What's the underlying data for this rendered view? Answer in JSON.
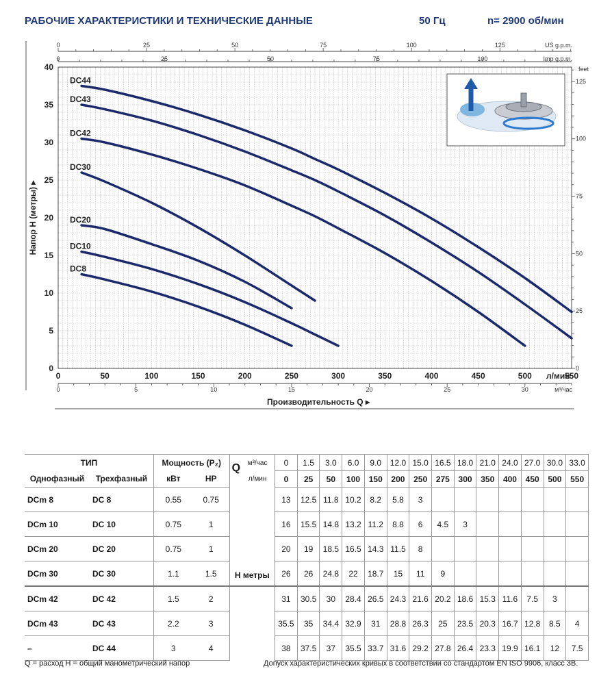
{
  "header": {
    "title": "РАБОЧИЕ ХАРАКТЕРИСТИКИ И ТЕХНИЧЕСКИЕ  ДАННЫЕ",
    "frequency": "50 Гц",
    "rpm": "n= 2900 об/мин"
  },
  "chart_data": {
    "type": "line",
    "title": "",
    "xlabel": "Производительность Q",
    "ylabel": "Напор H  (метры)",
    "x_unit": "л/мин",
    "xlim": [
      0,
      550
    ],
    "ylim": [
      0,
      40
    ],
    "grid": true,
    "x_ticks": [
      0,
      50,
      100,
      150,
      200,
      250,
      300,
      350,
      400,
      450,
      500,
      550
    ],
    "y_ticks": [
      0,
      5,
      10,
      15,
      20,
      25,
      30,
      35,
      40
    ],
    "top_axis_us": {
      "label": "US g.p.m.",
      "ticks": [
        0,
        25,
        50,
        75,
        100,
        125
      ]
    },
    "top_axis_imp": {
      "label": "Imp g.p.m.",
      "ticks": [
        0,
        25,
        50,
        75,
        100
      ]
    },
    "bottom_axis_m3": {
      "label": "м³/час",
      "ticks": [
        0,
        5,
        10,
        15,
        20,
        25,
        30
      ]
    },
    "right_axis_feet": {
      "label": "feet",
      "ticks": [
        0,
        25,
        50,
        75,
        100,
        125
      ]
    },
    "series": [
      {
        "name": "DC44",
        "x": [
          25,
          50,
          100,
          150,
          200,
          250,
          275,
          300,
          350,
          400,
          450,
          500,
          550
        ],
        "y": [
          37.5,
          37,
          35.5,
          33.7,
          31.6,
          29.2,
          27.8,
          26.4,
          23.3,
          19.9,
          16.1,
          12,
          7.5
        ]
      },
      {
        "name": "DC43",
        "x": [
          25,
          50,
          100,
          150,
          200,
          250,
          275,
          300,
          350,
          400,
          450,
          500,
          550
        ],
        "y": [
          35,
          34.4,
          32.9,
          31,
          28.8,
          26.3,
          25,
          23.5,
          20.3,
          16.7,
          12.8,
          8.5,
          4
        ]
      },
      {
        "name": "DC42",
        "x": [
          25,
          50,
          100,
          150,
          200,
          250,
          275,
          300,
          350,
          400,
          450,
          500
        ],
        "y": [
          30.5,
          30,
          28.4,
          26.5,
          24.3,
          21.6,
          20.2,
          18.6,
          15.3,
          11.6,
          7.5,
          3
        ]
      },
      {
        "name": "DC30",
        "x": [
          25,
          50,
          100,
          150,
          200,
          250,
          275
        ],
        "y": [
          26,
          24.8,
          22,
          18.7,
          15,
          11,
          9
        ]
      },
      {
        "name": "DC20",
        "x": [
          25,
          50,
          100,
          150,
          200,
          250
        ],
        "y": [
          19,
          18.5,
          16.5,
          14.3,
          11.5,
          8
        ]
      },
      {
        "name": "DC10",
        "x": [
          25,
          50,
          100,
          150,
          200,
          250,
          275,
          300
        ],
        "y": [
          15.5,
          14.8,
          13.2,
          11.2,
          8.8,
          6,
          4.5,
          3
        ]
      },
      {
        "name": "DC8",
        "x": [
          25,
          50,
          100,
          150,
          200,
          250
        ],
        "y": [
          12.5,
          11.8,
          10.2,
          8.2,
          5.8,
          3
        ]
      }
    ],
    "line_color": "#1b2a6b"
  },
  "table": {
    "type_header": "ТИП",
    "power_header": "Мощность (P₂)",
    "single_phase": "Однофазный",
    "three_phase": "Трехфазный",
    "kw": "кВт",
    "hp": "HP",
    "q_letter": "Q",
    "m3_unit": "м³/час",
    "lmin_unit": "л/мин",
    "h_label": "H метры",
    "m3_values": [
      "0",
      "1.5",
      "3.0",
      "6.0",
      "9.0",
      "12.0",
      "15.0",
      "16.5",
      "18.0",
      "21.0",
      "24.0",
      "27.0",
      "30.0",
      "33.0"
    ],
    "lmin_values": [
      "0",
      "25",
      "50",
      "100",
      "150",
      "200",
      "250",
      "275",
      "300",
      "350",
      "400",
      "450",
      "500",
      "550"
    ],
    "rows": [
      {
        "single": "DCm 8",
        "three": "DC 8",
        "kw": "0.55",
        "hp": "0.75",
        "h": [
          "13",
          "12.5",
          "11.8",
          "10.2",
          "8.2",
          "5.8",
          "3",
          "",
          "",
          "",
          "",
          "",
          "",
          ""
        ]
      },
      {
        "single": "DCm 10",
        "three": "DC 10",
        "kw": "0.75",
        "hp": "1",
        "h": [
          "16",
          "15.5",
          "14.8",
          "13.2",
          "11.2",
          "8.8",
          "6",
          "4.5",
          "3",
          "",
          "",
          "",
          "",
          ""
        ]
      },
      {
        "single": "DCm 20",
        "three": "DC 20",
        "kw": "0.75",
        "hp": "1",
        "h": [
          "20",
          "19",
          "18.5",
          "16.5",
          "14.3",
          "11.5",
          "8",
          "",
          "",
          "",
          "",
          "",
          "",
          ""
        ]
      },
      {
        "single": "DCm 30",
        "three": "DC 30",
        "kw": "1.1",
        "hp": "1.5",
        "h": [
          "26",
          "26",
          "24.8",
          "22",
          "18.7",
          "15",
          "11",
          "9",
          "",
          "",
          "",
          "",
          "",
          ""
        ]
      },
      {
        "single": "DCm 42",
        "three": "DC 42",
        "kw": "1.5",
        "hp": "2",
        "h": [
          "31",
          "30.5",
          "30",
          "28.4",
          "26.5",
          "24.3",
          "21.6",
          "20.2",
          "18.6",
          "15.3",
          "11.6",
          "7.5",
          "3",
          ""
        ]
      },
      {
        "single": "DCm 43",
        "three": "DC 43",
        "kw": "2.2",
        "hp": "3",
        "h": [
          "35.5",
          "35",
          "34.4",
          "32.9",
          "31",
          "28.8",
          "26.3",
          "25",
          "23.5",
          "20.3",
          "16.7",
          "12.8",
          "8.5",
          "4"
        ]
      },
      {
        "single": "–",
        "three": "DC 44",
        "kw": "3",
        "hp": "4",
        "h": [
          "38",
          "37.5",
          "37",
          "35.5",
          "33.7",
          "31.6",
          "29.2",
          "27.8",
          "26.4",
          "23.3",
          "19.9",
          "16.1",
          "12",
          "7.5"
        ]
      }
    ]
  },
  "footer": {
    "legend_left": "Q = расход    H = общий манометрический напор",
    "tolerance": "Допуск характеристических кривых в соответствии со стандартом EN ISO 9906, класс 3B."
  }
}
